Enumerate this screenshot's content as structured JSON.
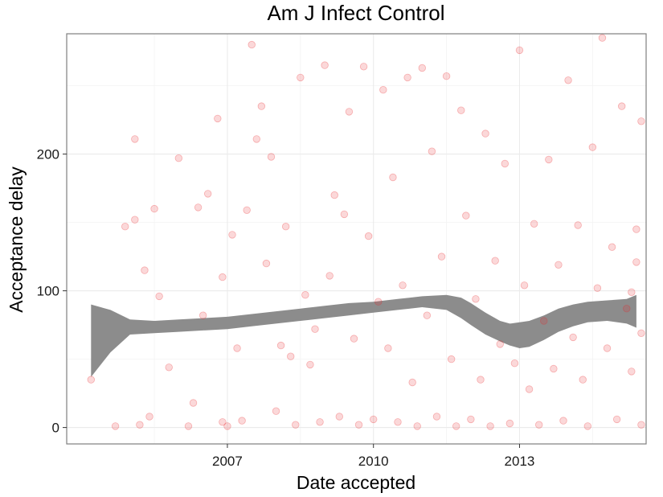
{
  "chart_data": {
    "type": "scatter",
    "title": "Am J Infect Control",
    "xlabel": "Date accepted",
    "ylabel": "Acceptance delay",
    "x_ticks": [
      {
        "value": 2007,
        "label": "2007"
      },
      {
        "value": 2010,
        "label": "2010"
      },
      {
        "value": 2013,
        "label": "2013"
      }
    ],
    "y_ticks": [
      {
        "value": 0,
        "label": "0"
      },
      {
        "value": 100,
        "label": "100"
      },
      {
        "value": 200,
        "label": "200"
      }
    ],
    "xlim": [
      2003.7,
      2015.6
    ],
    "ylim": [
      -12,
      288
    ],
    "grid": true,
    "colors": {
      "points": "#e8272b",
      "smooth_band": "#8c8c8c",
      "panel_border": "#7f7f7f",
      "grid": "#ebebeb"
    },
    "smooth": {
      "x": [
        2004.2,
        2004.6,
        2005.0,
        2005.5,
        2006.0,
        2006.5,
        2007.0,
        2007.5,
        2008.0,
        2008.5,
        2009.0,
        2009.5,
        2010.0,
        2010.5,
        2011.0,
        2011.5,
        2011.8,
        2012.0,
        2012.3,
        2012.6,
        2012.8,
        2013.0,
        2013.2,
        2013.5,
        2013.8,
        2014.1,
        2014.4,
        2014.8,
        2015.2,
        2015.4
      ],
      "lower": [
        37,
        55,
        68,
        69,
        70,
        71,
        72,
        74,
        76,
        78,
        80,
        82,
        84,
        86,
        88,
        86,
        80,
        75,
        68,
        63,
        60,
        58,
        59,
        64,
        70,
        74,
        77,
        78,
        76,
        73
      ],
      "upper": [
        90,
        86,
        79,
        78,
        79,
        80,
        81,
        83,
        85,
        87,
        89,
        91,
        92,
        94,
        96,
        97,
        95,
        91,
        84,
        78,
        76,
        77,
        78,
        82,
        87,
        90,
        92,
        93,
        94,
        97
      ]
    },
    "points": [
      [
        2004.2,
        35
      ],
      [
        2004.7,
        1
      ],
      [
        2004.9,
        147
      ],
      [
        2005.1,
        211
      ],
      [
        2005.1,
        152
      ],
      [
        2005.2,
        2
      ],
      [
        2005.3,
        115
      ],
      [
        2005.4,
        8
      ],
      [
        2005.5,
        160
      ],
      [
        2005.6,
        96
      ],
      [
        2005.8,
        44
      ],
      [
        2006.0,
        197
      ],
      [
        2006.2,
        1
      ],
      [
        2006.3,
        18
      ],
      [
        2006.4,
        161
      ],
      [
        2006.5,
        82
      ],
      [
        2006.6,
        171
      ],
      [
        2006.8,
        226
      ],
      [
        2006.9,
        4
      ],
      [
        2006.9,
        110
      ],
      [
        2007.0,
        1
      ],
      [
        2007.1,
        141
      ],
      [
        2007.2,
        58
      ],
      [
        2007.3,
        5
      ],
      [
        2007.4,
        159
      ],
      [
        2007.5,
        280
      ],
      [
        2007.6,
        211
      ],
      [
        2007.7,
        235
      ],
      [
        2007.8,
        120
      ],
      [
        2007.9,
        198
      ],
      [
        2008.0,
        12
      ],
      [
        2008.1,
        60
      ],
      [
        2008.2,
        147
      ],
      [
        2008.3,
        52
      ],
      [
        2008.4,
        2
      ],
      [
        2008.5,
        256
      ],
      [
        2008.6,
        97
      ],
      [
        2008.7,
        46
      ],
      [
        2008.8,
        72
      ],
      [
        2008.9,
        4
      ],
      [
        2009.0,
        265
      ],
      [
        2009.1,
        111
      ],
      [
        2009.2,
        170
      ],
      [
        2009.3,
        8
      ],
      [
        2009.4,
        156
      ],
      [
        2009.5,
        231
      ],
      [
        2009.6,
        65
      ],
      [
        2009.7,
        2
      ],
      [
        2009.8,
        264
      ],
      [
        2009.9,
        140
      ],
      [
        2010.0,
        6
      ],
      [
        2010.1,
        92
      ],
      [
        2010.2,
        247
      ],
      [
        2010.3,
        58
      ],
      [
        2010.4,
        183
      ],
      [
        2010.5,
        4
      ],
      [
        2010.6,
        104
      ],
      [
        2010.7,
        256
      ],
      [
        2010.8,
        33
      ],
      [
        2010.9,
        1
      ],
      [
        2011.0,
        263
      ],
      [
        2011.1,
        82
      ],
      [
        2011.2,
        202
      ],
      [
        2011.3,
        8
      ],
      [
        2011.4,
        125
      ],
      [
        2011.5,
        257
      ],
      [
        2011.6,
        50
      ],
      [
        2011.7,
        1
      ],
      [
        2011.8,
        232
      ],
      [
        2011.9,
        155
      ],
      [
        2012.0,
        6
      ],
      [
        2012.1,
        94
      ],
      [
        2012.2,
        35
      ],
      [
        2012.3,
        215
      ],
      [
        2012.4,
        1
      ],
      [
        2012.5,
        122
      ],
      [
        2012.6,
        61
      ],
      [
        2012.7,
        193
      ],
      [
        2012.8,
        3
      ],
      [
        2012.9,
        47
      ],
      [
        2013.0,
        276
      ],
      [
        2013.1,
        104
      ],
      [
        2013.2,
        28
      ],
      [
        2013.3,
        149
      ],
      [
        2013.4,
        2
      ],
      [
        2013.5,
        78
      ],
      [
        2013.6,
        196
      ],
      [
        2013.7,
        43
      ],
      [
        2013.8,
        119
      ],
      [
        2013.9,
        5
      ],
      [
        2014.0,
        254
      ],
      [
        2014.1,
        66
      ],
      [
        2014.2,
        148
      ],
      [
        2014.3,
        35
      ],
      [
        2014.4,
        1
      ],
      [
        2014.5,
        205
      ],
      [
        2014.6,
        102
      ],
      [
        2014.7,
        285
      ],
      [
        2014.8,
        58
      ],
      [
        2014.9,
        132
      ],
      [
        2015.0,
        6
      ],
      [
        2015.1,
        235
      ],
      [
        2015.2,
        87
      ],
      [
        2015.3,
        41
      ],
      [
        2015.4,
        121
      ],
      [
        2015.5,
        224
      ],
      [
        2015.5,
        2
      ],
      [
        2015.5,
        69
      ],
      [
        2015.4,
        145
      ],
      [
        2015.3,
        99
      ]
    ]
  }
}
